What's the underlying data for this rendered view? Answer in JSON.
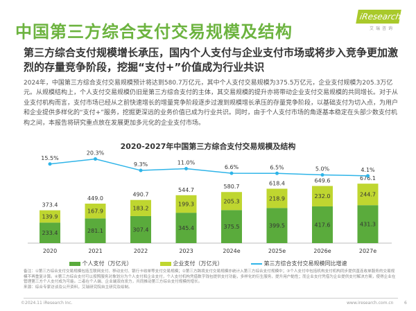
{
  "title": "中国第三方综合支付交易规模及结构",
  "logo": "iResearch",
  "logo_sub": "艾瑞咨询",
  "subtitle": "第三方综合支付规模增长承压，国内个人支付与企业支付市场或将步入竞争更加激烈的存量竞争阶段，挖掘“支付+”价值成为行业共识",
  "body": "2024年，中国第三方综合支付交易规模预计将达到580.7万亿元，其中个人支付交易规模为375.5万亿元，企业支付规模为205.3万亿元。从规模结构上，个人支付交易规模仍旧是第三方综合支付的主体，其交易规模的提升亦将带动企业支付交易规模的共同增长。对于从业支付机构而言，支付市场已经从之前快速增长的增量竞争阶段逐步过渡到规模增长承压的存量竞争阶段，以基础支付为切入点，为用户和企业提供多样化的“支付+”服务，挖掘更深远的业务价值已成为行业共识。同时，由于个人支付市场的角逐基本稳定在头部少数支付机构之间，本报告将研究重点放在发展更加多元化的企业支付市场。",
  "notes": "备注：①第三方综合支付交易规模包括互联网支付、移动支付、银行卡收单等支付交易规模；②第三方跨境支付交易规模亦统计入第三方综合支付规模中；③个人支付中包括机构支付机构同步提供直连收单服务的交易规模不再重复计算。④第三方综合支付可以按照服务对象划分为个人支付和企业支付，个人支付机构凭借数字钱包提供支付功能，多样化的衍生服务，提升用户黏性；而企业支付凭借为企业提供支付解决方案，使得企业在管理第三方个人支付成为可能。二者在个人端、企业端双向发力，共同推动第三方综合支付规模的增长。",
  "source": "来源：综合专家访谈及公开资料，艾瑞研究院自主研究及绘制。",
  "copyright": "©2024.11 iResearch Inc.",
  "site": "www.iresearch.com.cn",
  "page": "6",
  "colors": {
    "personal": "#5aab3c",
    "enterprise": "#bfd630",
    "growth": "#2eb4e8",
    "title": "#6cb33f"
  },
  "chart_data": {
    "type": "bar",
    "title": "2020-2027年中国第三方综合支付交易规模及结构",
    "categories": [
      "2020",
      "2021",
      "2022",
      "2023",
      "2024e",
      "2025e",
      "2026e",
      "2027e"
    ],
    "series": [
      {
        "name": "个人支付（万亿元）",
        "type": "stacked-bar",
        "values": [
          233.4,
          281.1,
          307.4,
          345.4,
          375.5,
          399.5,
          417.6,
          431.3
        ]
      },
      {
        "name": "企业支付（万亿元）",
        "type": "stacked-bar",
        "values": [
          139.9,
          167.9,
          183.2,
          199.3,
          205.3,
          218.9,
          232.0,
          244.7
        ]
      },
      {
        "name": "第三方综合支付交易规模同比增速",
        "type": "line",
        "values": [
          15.5,
          20.3,
          9.3,
          11.0,
          6.6,
          6.5,
          5.0,
          4.1
        ],
        "unit": "%"
      }
    ],
    "totals": [
      373.4,
      449.0,
      490.7,
      544.7,
      580.7,
      618.4,
      649.6,
      676.1
    ]
  }
}
